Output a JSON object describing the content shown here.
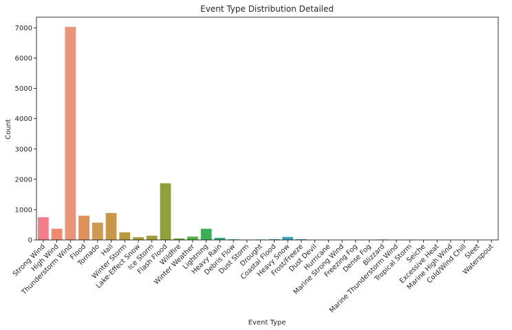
{
  "chart_data": {
    "type": "bar",
    "title": "Event Type Distribution Detailed",
    "xlabel": "Event Type",
    "ylabel": "Count",
    "ylim": [
      0,
      7350
    ],
    "yticks": [
      0,
      1000,
      2000,
      3000,
      4000,
      5000,
      6000,
      7000
    ],
    "grid": false,
    "categories": [
      "Strong Wind",
      "High Wind",
      "Thunderstorm Wind",
      "Flood",
      "Tornado",
      "Hail",
      "Winter Storm",
      "Lake-Effect Snow",
      "Ice Storm",
      "Flash Flood",
      "Wildfire",
      "Winter Weather",
      "Lightning",
      "Heavy Rain",
      "Debris Flow",
      "Dust Storm",
      "Drought",
      "Coastal Flood",
      "Heavy Snow",
      "Frost/Freeze",
      "Dust Devil",
      "Hurricane",
      "Marine Strong Wind",
      "Freezing Fog",
      "Dense Fog",
      "Blizzard",
      "Marine Thunderstorm Wind",
      "Tropical Storm",
      "Seiche",
      "Excessive Heat",
      "Marine High Wind",
      "Cold/Wind Chill",
      "Sleet",
      "Waterspout"
    ],
    "values": [
      750,
      370,
      7030,
      800,
      570,
      890,
      250,
      90,
      140,
      1870,
      50,
      110,
      370,
      70,
      20,
      5,
      15,
      25,
      100,
      25,
      5,
      3,
      3,
      3,
      5,
      15,
      3,
      10,
      3,
      3,
      3,
      3,
      3,
      3
    ],
    "colors": [
      "#f07f8b",
      "#ef8a70",
      "#e8957a",
      "#dd9158",
      "#cc9a52",
      "#c7974a",
      "#b89a3e",
      "#a89e3a",
      "#a49e3a",
      "#91a03a",
      "#6faa3e",
      "#55b043",
      "#3db056",
      "#36aa7a",
      "#35a98c",
      "#37a899",
      "#38a7a4",
      "#3aa5ad",
      "#3ca3b8",
      "#3fa0c4",
      "#4c9dd1",
      "#5f98dc",
      "#7890e6",
      "#8e88ea",
      "#a57fec",
      "#b876ea",
      "#c76ee6",
      "#d566df",
      "#e060d3",
      "#e660c5",
      "#ea5fb5",
      "#ed62a6",
      "#ef6597",
      "#f06b8b"
    ]
  }
}
